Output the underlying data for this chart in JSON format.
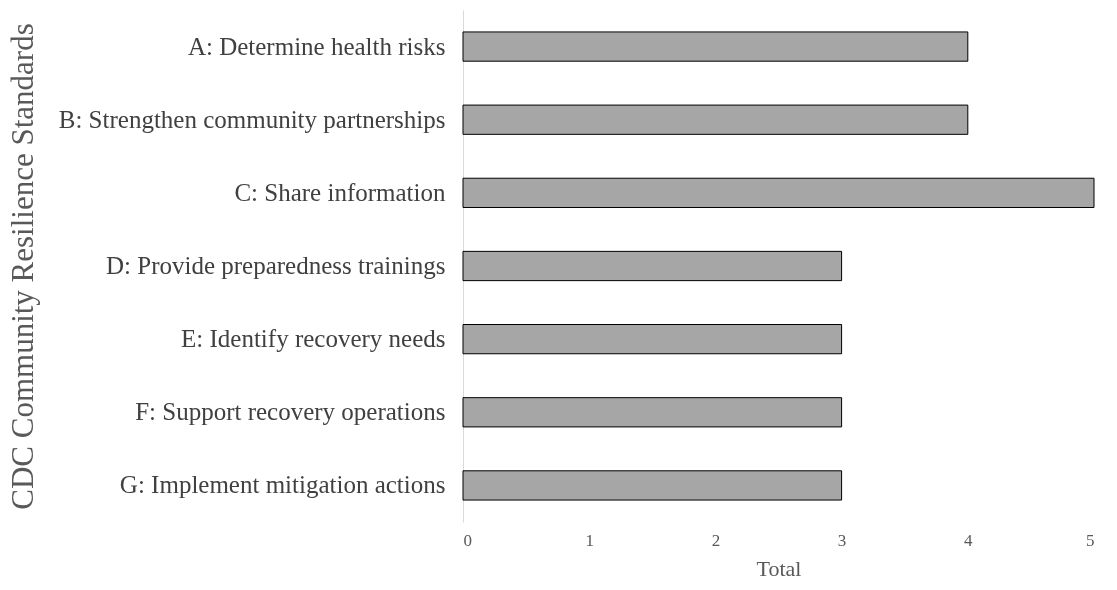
{
  "chart_data": {
    "type": "bar",
    "orientation": "horizontal",
    "ylabel": "CDC Community Resilience Standards",
    "xlabel": "Total",
    "categories": [
      "A: Determine health risks",
      "B: Strengthen community partnerships",
      "C: Share information",
      "D: Provide preparedness trainings",
      "E: Identify recovery needs",
      "F: Support recovery operations",
      "G: Implement mitigation actions"
    ],
    "values": [
      4,
      4,
      5,
      3,
      3,
      3,
      3
    ],
    "color": "#a6a6a6",
    "xlim": [
      0,
      5
    ],
    "xticks": [
      0,
      1,
      2,
      3,
      4,
      5
    ],
    "grid": false
  }
}
